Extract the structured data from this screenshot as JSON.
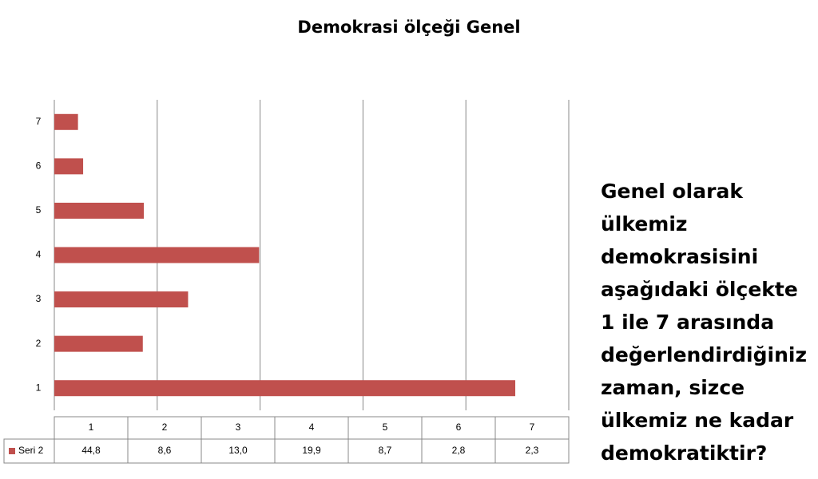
{
  "chart_data": {
    "type": "bar",
    "orientation": "horizontal",
    "title": "Demokrasi ölçeği Genel",
    "categories": [
      "1",
      "2",
      "3",
      "4",
      "5",
      "6",
      "7"
    ],
    "series": [
      {
        "name": "Seri 2",
        "color": "#c0504d",
        "values": [
          44.8,
          8.6,
          13.0,
          19.9,
          8.7,
          2.8,
          2.3
        ],
        "value_labels": [
          "44,8",
          "8,6",
          "13,0",
          "19,9",
          "8,7",
          "2,8",
          "2,3"
        ]
      }
    ],
    "xlim": [
      0,
      50
    ],
    "xticks": [
      0,
      10,
      20,
      30,
      40,
      50
    ],
    "show_tick_labels": false,
    "grid": true,
    "data_table": true,
    "annotation_lines": [
      "Genel olarak",
      "ülkemiz",
      "demokrasisini",
      "aşağıdaki ölçekte",
      "1 ile 7 arasında",
      "değerlendirdiğiniz",
      "zaman, sizce",
      "ülkemiz ne kadar",
      "demokratiktir?"
    ]
  }
}
